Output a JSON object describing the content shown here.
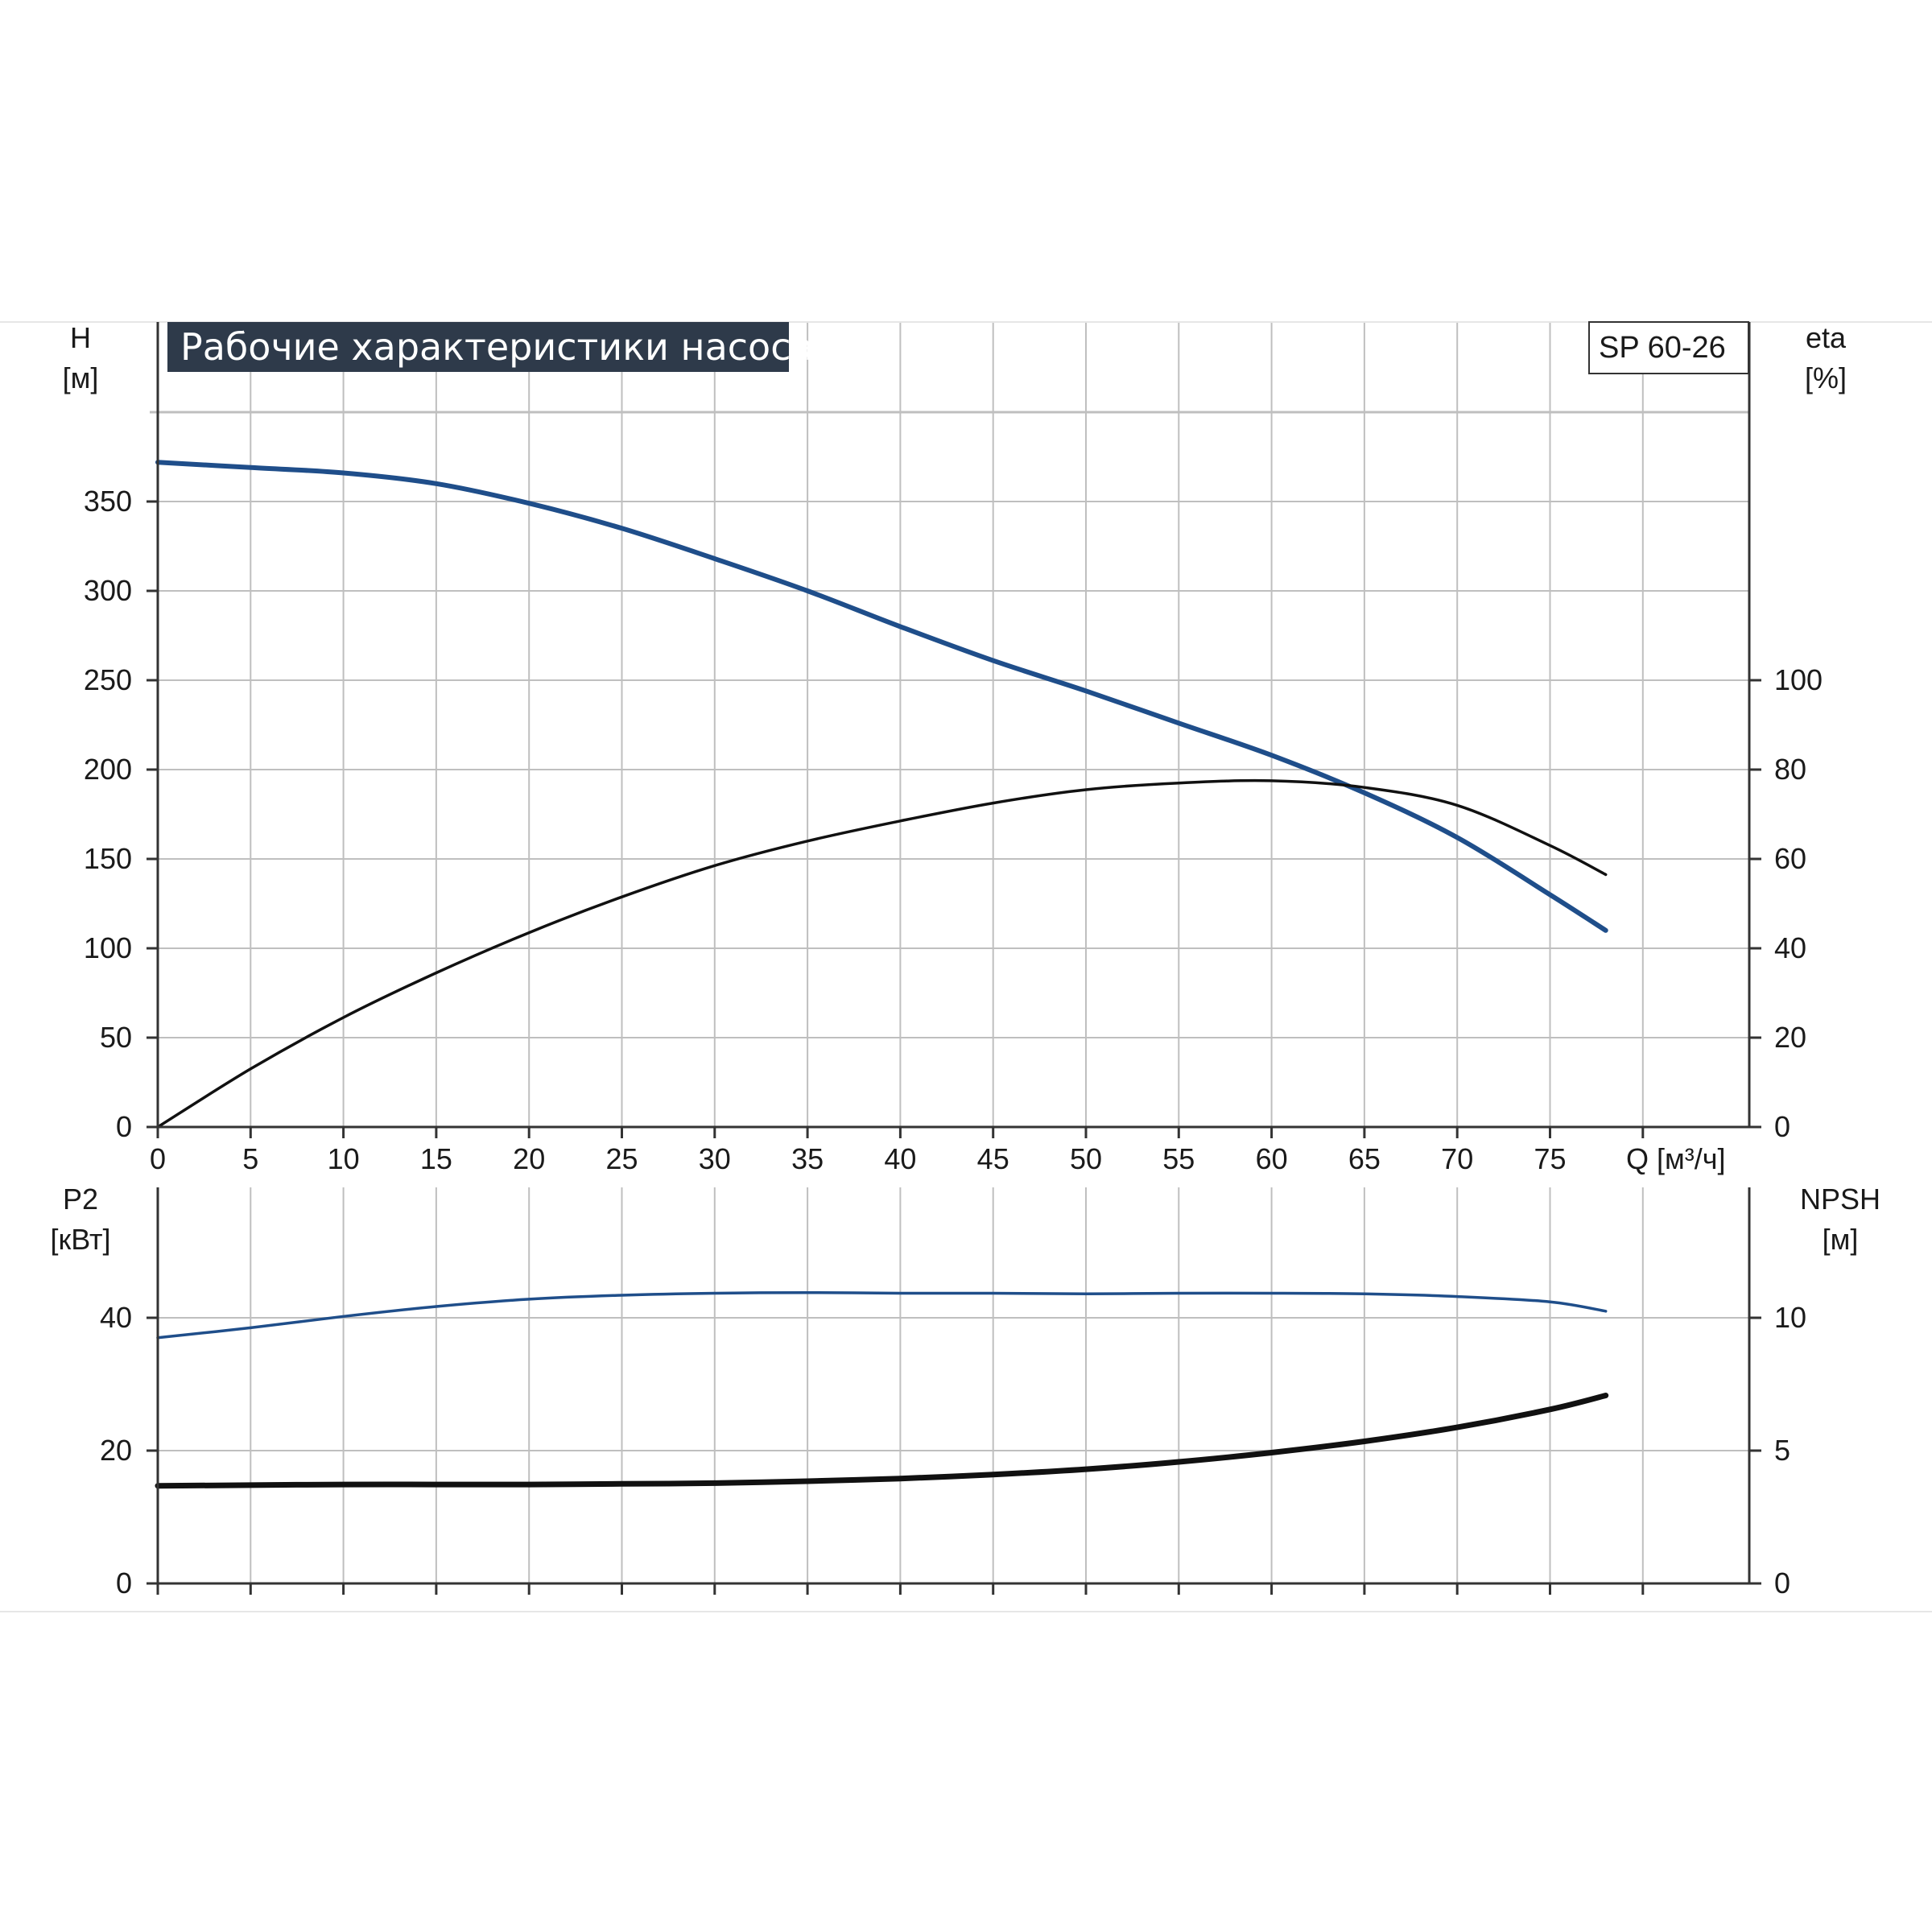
{
  "title": "Рабочие характеристики насоса",
  "model": "SP 60-26",
  "colors": {
    "blue": "#1f4e8a",
    "black": "#111111",
    "grid": "#bfbfbf",
    "axis": "#333333",
    "title_bg": "#2e3a4a"
  },
  "chart_data": [
    {
      "type": "line",
      "panel": "top",
      "xlabel": "Q [м³/ч]",
      "ylabel_left": [
        "H",
        "[м]"
      ],
      "ylabel_right": [
        "eta",
        "[%]"
      ],
      "xlim": [
        0,
        85
      ],
      "ylim_left": [
        0,
        400
      ],
      "ylim_right": [
        0,
        100
      ],
      "x_ticks": [
        "0",
        "5",
        "10",
        "15",
        "20",
        "25",
        "30",
        "35",
        "40",
        "45",
        "50",
        "55",
        "60",
        "65",
        "70",
        "75"
      ],
      "y_ticks_left": [
        "0",
        "50",
        "100",
        "150",
        "200",
        "250",
        "300",
        "350"
      ],
      "y_ticks_right": [
        "0",
        "20",
        "40",
        "60",
        "80",
        "100"
      ],
      "grid": true,
      "series": [
        {
          "axis": "left",
          "color": "blue",
          "x": [
            0,
            5,
            10,
            15,
            20,
            25,
            30,
            35,
            40,
            45,
            50,
            55,
            60,
            65,
            70,
            75,
            78
          ],
          "values": [
            372,
            369,
            366,
            360,
            349,
            335,
            318,
            300,
            280,
            261,
            244,
            226,
            208,
            187,
            162,
            130,
            110
          ]
        },
        {
          "axis": "right",
          "color": "black",
          "x": [
            0,
            5,
            10,
            15,
            20,
            25,
            30,
            35,
            40,
            45,
            50,
            55,
            60,
            65,
            70,
            75,
            78
          ],
          "values": [
            0,
            13,
            24.5,
            34.5,
            43.5,
            51.5,
            58.5,
            64,
            68.5,
            72.5,
            75.5,
            77,
            77.5,
            76,
            72,
            63,
            56.5
          ]
        }
      ]
    },
    {
      "type": "line",
      "panel": "bottom",
      "ylabel_left": [
        "P2",
        "[кВт]"
      ],
      "ylabel_right": [
        "NPSH",
        "[м]"
      ],
      "xlim": [
        0,
        85
      ],
      "ylim_left": [
        0,
        60
      ],
      "ylim_right": [
        0,
        15
      ],
      "y_ticks_left": [
        "0",
        "20",
        "40"
      ],
      "y_ticks_right": [
        "0",
        "5",
        "10"
      ],
      "grid": true,
      "series": [
        {
          "axis": "left",
          "color": "blue",
          "x": [
            0,
            5,
            10,
            15,
            20,
            25,
            30,
            35,
            40,
            45,
            50,
            55,
            60,
            65,
            70,
            75,
            78
          ],
          "values": [
            37,
            38.5,
            40.2,
            41.7,
            42.8,
            43.4,
            43.7,
            43.8,
            43.7,
            43.7,
            43.6,
            43.7,
            43.7,
            43.6,
            43.2,
            42.4,
            41
          ]
        },
        {
          "axis": "left",
          "color": "black",
          "x": [
            0,
            5,
            10,
            15,
            20,
            25,
            30,
            35,
            40,
            45,
            50,
            55,
            60,
            65,
            70,
            75,
            78
          ],
          "values": [
            14.7,
            14.8,
            14.9,
            14.9,
            14.9,
            15,
            15.1,
            15.4,
            15.8,
            16.4,
            17.2,
            18.3,
            19.7,
            21.4,
            23.5,
            26.2,
            28.3
          ]
        }
      ]
    }
  ]
}
